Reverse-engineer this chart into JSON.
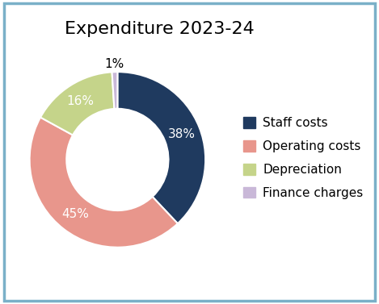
{
  "title": "Expenditure 2023-24",
  "labels": [
    "Staff costs",
    "Operating costs",
    "Depreciation",
    "Finance charges"
  ],
  "values": [
    38,
    45,
    16,
    1
  ],
  "pct_labels": [
    "38%",
    "45%",
    "16%",
    "1%"
  ],
  "colors": [
    "#1f3a5f",
    "#e8968c",
    "#c5d48a",
    "#c9b8d8"
  ],
  "background_color": "#ffffff",
  "border_color": "#7ab0c8",
  "title_fontsize": 16,
  "label_fontsize": 11,
  "legend_fontsize": 11,
  "startangle": 90,
  "donut_width": 0.42
}
